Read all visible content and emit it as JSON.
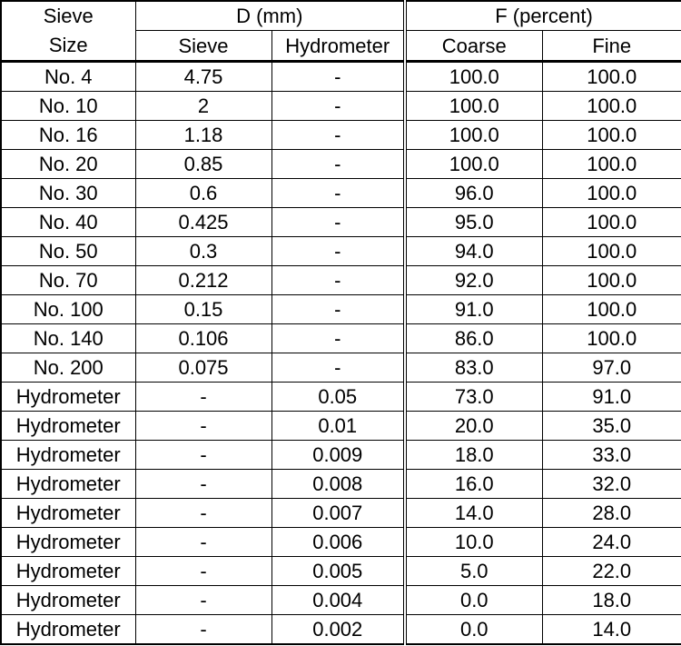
{
  "headers": {
    "sieve_size_line1": "Sieve",
    "sieve_size_line2": "Size",
    "d_group": "D (mm)",
    "f_group": "F (percent)",
    "sieve": "Sieve",
    "hydrometer": "Hydrometer",
    "coarse": "Coarse",
    "fine": "Fine"
  },
  "rows": [
    {
      "size": "No. 4",
      "sieve": "4.75",
      "hydro": "-",
      "coarse": "100.0",
      "fine": "100.0"
    },
    {
      "size": "No. 10",
      "sieve": "2",
      "hydro": "-",
      "coarse": "100.0",
      "fine": "100.0"
    },
    {
      "size": "No. 16",
      "sieve": "1.18",
      "hydro": "-",
      "coarse": "100.0",
      "fine": "100.0"
    },
    {
      "size": "No. 20",
      "sieve": "0.85",
      "hydro": "-",
      "coarse": "100.0",
      "fine": "100.0"
    },
    {
      "size": "No. 30",
      "sieve": "0.6",
      "hydro": "-",
      "coarse": "96.0",
      "fine": "100.0"
    },
    {
      "size": "No. 40",
      "sieve": "0.425",
      "hydro": "-",
      "coarse": "95.0",
      "fine": "100.0"
    },
    {
      "size": "No. 50",
      "sieve": "0.3",
      "hydro": "-",
      "coarse": "94.0",
      "fine": "100.0"
    },
    {
      "size": "No. 70",
      "sieve": "0.212",
      "hydro": "-",
      "coarse": "92.0",
      "fine": "100.0"
    },
    {
      "size": "No. 100",
      "sieve": "0.15",
      "hydro": "-",
      "coarse": "91.0",
      "fine": "100.0"
    },
    {
      "size": "No. 140",
      "sieve": "0.106",
      "hydro": "-",
      "coarse": "86.0",
      "fine": "100.0"
    },
    {
      "size": "No. 200",
      "sieve": "0.075",
      "hydro": "-",
      "coarse": "83.0",
      "fine": "97.0"
    },
    {
      "size": "Hydrometer",
      "sieve": "-",
      "hydro": "0.05",
      "coarse": "73.0",
      "fine": "91.0"
    },
    {
      "size": "Hydrometer",
      "sieve": "-",
      "hydro": "0.01",
      "coarse": "20.0",
      "fine": "35.0"
    },
    {
      "size": "Hydrometer",
      "sieve": "-",
      "hydro": "0.009",
      "coarse": "18.0",
      "fine": "33.0"
    },
    {
      "size": "Hydrometer",
      "sieve": "-",
      "hydro": "0.008",
      "coarse": "16.0",
      "fine": "32.0"
    },
    {
      "size": "Hydrometer",
      "sieve": "-",
      "hydro": "0.007",
      "coarse": "14.0",
      "fine": "28.0"
    },
    {
      "size": "Hydrometer",
      "sieve": "-",
      "hydro": "0.006",
      "coarse": "10.0",
      "fine": "24.0"
    },
    {
      "size": "Hydrometer",
      "sieve": "-",
      "hydro": "0.005",
      "coarse": "5.0",
      "fine": "22.0"
    },
    {
      "size": "Hydrometer",
      "sieve": "-",
      "hydro": "0.004",
      "coarse": "0.0",
      "fine": "18.0"
    },
    {
      "size": "Hydrometer",
      "sieve": "-",
      "hydro": "0.002",
      "coarse": "0.0",
      "fine": "14.0"
    }
  ]
}
